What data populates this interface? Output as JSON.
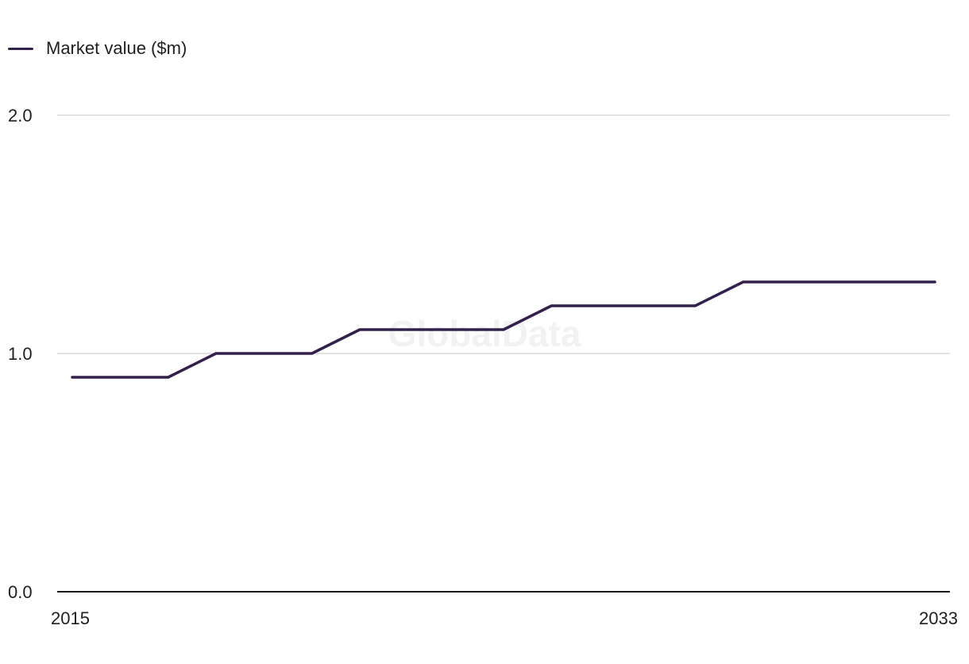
{
  "legend": {
    "series_label": "Market value ($m)"
  },
  "watermark": "GlobalData",
  "colors": {
    "series": "#33204d",
    "grid": "#d9d9d9",
    "axis": "#1a1a1a"
  },
  "chart_data": {
    "type": "line",
    "title": "",
    "xlabel": "",
    "ylabel": "",
    "legend_position": "top-left",
    "grid": true,
    "x": [
      2015,
      2016,
      2017,
      2018,
      2019,
      2020,
      2021,
      2022,
      2023,
      2024,
      2025,
      2026,
      2027,
      2028,
      2029,
      2030,
      2031,
      2032,
      2033
    ],
    "x_tick_labels": [
      "2015",
      "2033"
    ],
    "xlim": [
      2015,
      2033
    ],
    "ylim": [
      0,
      2
    ],
    "y_ticks": [
      0,
      1,
      2
    ],
    "y_tick_labels": [
      "0.0",
      "1.0",
      "2.0"
    ],
    "series": [
      {
        "name": "Market value ($m)",
        "values": [
          0.9,
          0.9,
          0.9,
          1.0,
          1.0,
          1.0,
          1.1,
          1.1,
          1.1,
          1.1,
          1.2,
          1.2,
          1.2,
          1.2,
          1.3,
          1.3,
          1.3,
          1.3,
          1.3
        ]
      }
    ]
  }
}
